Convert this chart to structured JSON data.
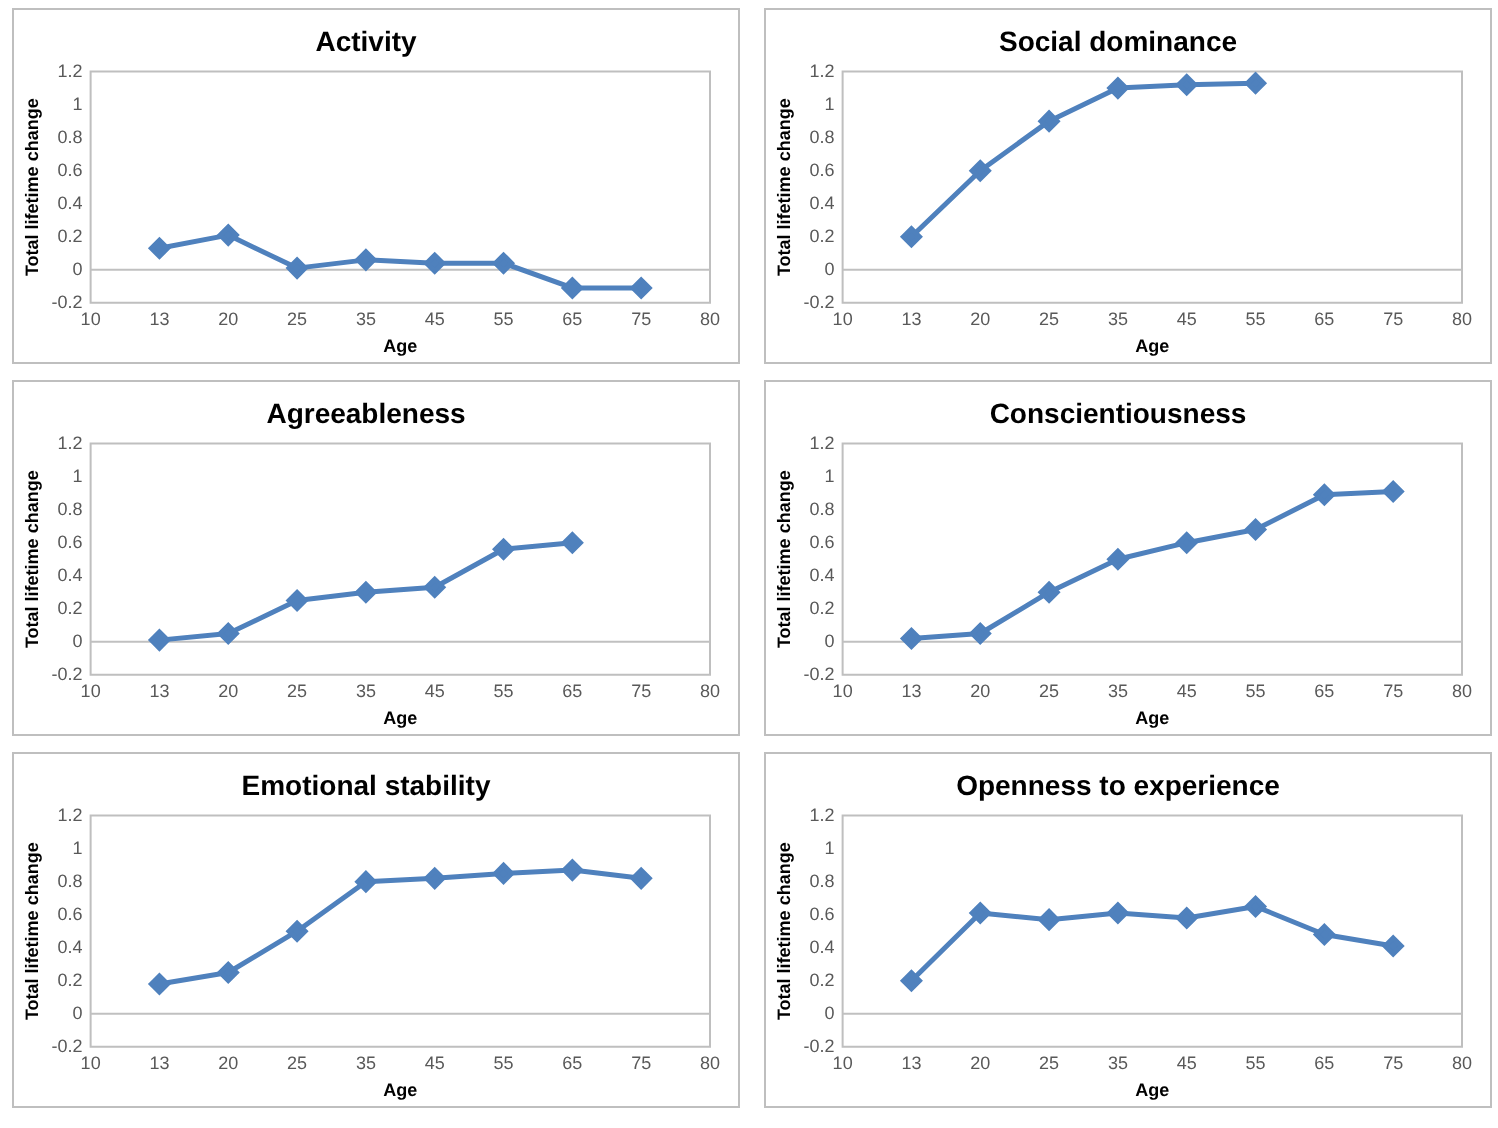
{
  "chart_data": [
    {
      "type": "line",
      "title": "Activity",
      "xlabel": "Age",
      "ylabel": "Total lifetime change",
      "categories": [
        "10",
        "13",
        "20",
        "25",
        "35",
        "45",
        "55",
        "65",
        "75",
        "80"
      ],
      "series": [
        {
          "color": "#4f81bd",
          "values": [
            null,
            0.13,
            0.21,
            0.01,
            0.06,
            0.04,
            0.04,
            -0.11,
            -0.11,
            null
          ]
        }
      ],
      "ylim": [
        -0.2,
        1.2
      ],
      "yticks": [
        -0.2,
        0,
        0.2,
        0.4,
        0.6,
        0.8,
        1,
        1.2
      ],
      "grid": false,
      "legend": false,
      "marker": "diamond",
      "ref_lines": [
        {
          "axis": "y",
          "value": 0,
          "color": "#c0c0c0"
        }
      ]
    },
    {
      "type": "line",
      "title": "Social dominance",
      "xlabel": "Age",
      "ylabel": "Total lifetime change",
      "categories": [
        "10",
        "13",
        "20",
        "25",
        "35",
        "45",
        "55",
        "65",
        "75",
        "80"
      ],
      "series": [
        {
          "color": "#4f81bd",
          "values": [
            null,
            0.2,
            0.6,
            0.9,
            1.1,
            1.12,
            1.13,
            null,
            null,
            null
          ]
        }
      ],
      "ylim": [
        -0.2,
        1.2
      ],
      "yticks": [
        -0.2,
        0,
        0.2,
        0.4,
        0.6,
        0.8,
        1,
        1.2
      ],
      "grid": false,
      "legend": false,
      "marker": "diamond",
      "ref_lines": [
        {
          "axis": "y",
          "value": 0,
          "color": "#c0c0c0"
        }
      ]
    },
    {
      "type": "line",
      "title": "Agreeableness",
      "xlabel": "Age",
      "ylabel": "Total lifetime change",
      "categories": [
        "10",
        "13",
        "20",
        "25",
        "35",
        "45",
        "55",
        "65",
        "75",
        "80"
      ],
      "series": [
        {
          "color": "#4f81bd",
          "values": [
            null,
            0.01,
            0.05,
            0.25,
            0.3,
            0.33,
            0.56,
            0.6,
            null,
            null
          ]
        }
      ],
      "ylim": [
        -0.2,
        1.2
      ],
      "yticks": [
        -0.2,
        0,
        0.2,
        0.4,
        0.6,
        0.8,
        1,
        1.2
      ],
      "grid": false,
      "legend": false,
      "marker": "diamond",
      "ref_lines": [
        {
          "axis": "y",
          "value": 0,
          "color": "#c0c0c0"
        }
      ]
    },
    {
      "type": "line",
      "title": "Conscientiousness",
      "xlabel": "Age",
      "ylabel": "Total lifetime change",
      "categories": [
        "10",
        "13",
        "20",
        "25",
        "35",
        "45",
        "55",
        "65",
        "75",
        "80"
      ],
      "series": [
        {
          "color": "#4f81bd",
          "values": [
            null,
            0.02,
            0.05,
            0.3,
            0.5,
            0.6,
            0.68,
            0.89,
            0.91,
            null
          ]
        }
      ],
      "ylim": [
        -0.2,
        1.2
      ],
      "yticks": [
        -0.2,
        0,
        0.2,
        0.4,
        0.6,
        0.8,
        1,
        1.2
      ],
      "grid": false,
      "legend": false,
      "marker": "diamond",
      "ref_lines": [
        {
          "axis": "y",
          "value": 0,
          "color": "#c0c0c0"
        }
      ]
    },
    {
      "type": "line",
      "title": "Emotional stability",
      "xlabel": "Age",
      "ylabel": "Total lifetime change",
      "categories": [
        "10",
        "13",
        "20",
        "25",
        "35",
        "45",
        "55",
        "65",
        "75",
        "80"
      ],
      "series": [
        {
          "color": "#4f81bd",
          "values": [
            null,
            0.18,
            0.25,
            0.5,
            0.8,
            0.82,
            0.85,
            0.87,
            0.82,
            null
          ]
        }
      ],
      "ylim": [
        -0.2,
        1.2
      ],
      "yticks": [
        -0.2,
        0,
        0.2,
        0.4,
        0.6,
        0.8,
        1,
        1.2
      ],
      "grid": false,
      "legend": false,
      "marker": "diamond",
      "ref_lines": [
        {
          "axis": "y",
          "value": 0,
          "color": "#c0c0c0"
        }
      ]
    },
    {
      "type": "line",
      "title": "Openness to experience",
      "xlabel": "Age",
      "ylabel": "Total lifetime change",
      "categories": [
        "10",
        "13",
        "20",
        "25",
        "35",
        "45",
        "55",
        "65",
        "75",
        "80"
      ],
      "series": [
        {
          "color": "#4f81bd",
          "values": [
            null,
            0.2,
            0.61,
            0.57,
            0.61,
            0.58,
            0.65,
            0.48,
            0.41,
            null
          ]
        }
      ],
      "ylim": [
        -0.2,
        1.2
      ],
      "yticks": [
        -0.2,
        0,
        0.2,
        0.4,
        0.6,
        0.8,
        1,
        1.2
      ],
      "grid": false,
      "legend": false,
      "marker": "diamond",
      "ref_lines": [
        {
          "axis": "y",
          "value": 0,
          "color": "#c0c0c0"
        }
      ]
    }
  ]
}
